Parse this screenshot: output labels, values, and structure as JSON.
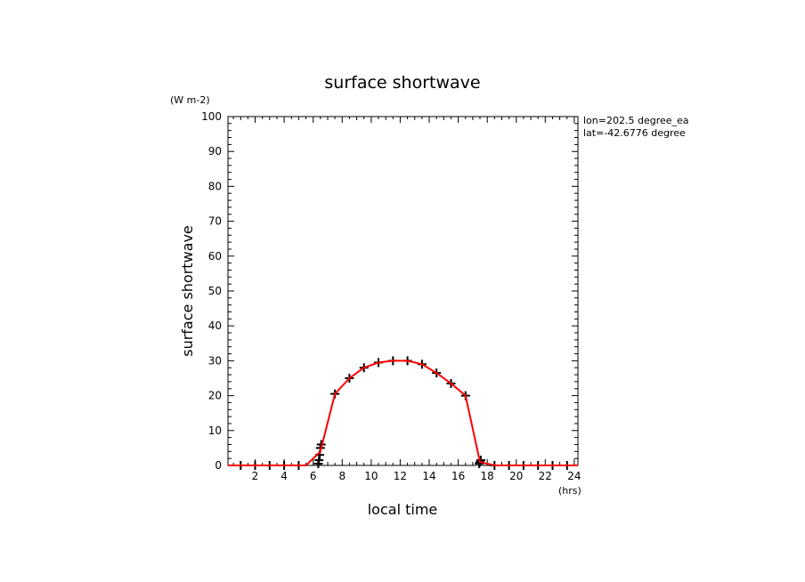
{
  "chart_data": {
    "type": "line",
    "title": "surface shortwave",
    "units": "(W m-2)",
    "xlabel": "local time",
    "x_units": "(hrs)",
    "ylabel": "surface shortwave",
    "annotations": [
      "lon=202.5 degree_ea",
      "lat=-42.6776 degree"
    ],
    "xlim": [
      0.125,
      24.25
    ],
    "ylim": [
      0,
      100
    ],
    "x_ticks": [
      2,
      4,
      6,
      8,
      10,
      12,
      14,
      16,
      18,
      20,
      22,
      24
    ],
    "y_ticks": [
      0,
      10,
      20,
      30,
      40,
      50,
      60,
      70,
      80,
      90,
      100
    ],
    "grid": false,
    "line_color": "#ff0000",
    "marker_color": "#000000",
    "line": {
      "x": [
        0.125,
        1,
        2,
        3,
        4,
        5,
        5.5,
        6.5,
        7.5,
        8.5,
        9.5,
        10.5,
        11.5,
        12.5,
        13.5,
        14.5,
        15.5,
        16.5,
        17.5,
        18.5,
        19.5,
        20.5,
        21.5,
        22.5,
        23.5,
        24.25
      ],
      "y": [
        0,
        0,
        0,
        0,
        0,
        0,
        0,
        4,
        20.5,
        25,
        28,
        29.5,
        30,
        30,
        29,
        26.5,
        23.5,
        20,
        1,
        0,
        0,
        0,
        0,
        0,
        0,
        0
      ]
    },
    "markers": {
      "x": [
        1,
        2,
        3,
        4,
        5,
        6.35,
        6.4,
        6.45,
        6.5,
        6.55,
        7.5,
        8.5,
        9.5,
        10.5,
        11.5,
        12.5,
        13.5,
        14.5,
        15.5,
        16.5,
        17.45,
        17.5,
        17.55,
        18.5,
        19.5,
        20.5,
        21.5,
        22.5,
        23.5
      ],
      "y": [
        0,
        0,
        0,
        0,
        0,
        0.5,
        1.5,
        3,
        5,
        6,
        20.5,
        25,
        28,
        29.5,
        30,
        30,
        29,
        26.5,
        23.5,
        20,
        0.5,
        1,
        1.5,
        0,
        0,
        0,
        0,
        0,
        0
      ]
    }
  }
}
